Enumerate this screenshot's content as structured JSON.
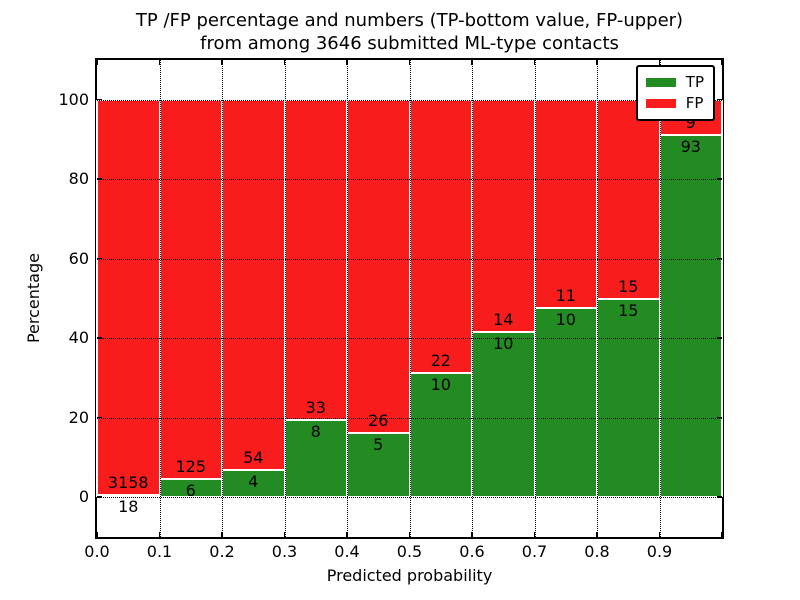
{
  "figure": {
    "title_line1": "TP /FP percentage and numbers (TP-bottom value, FP-upper)",
    "title_line2": "from among 3646 submitted ML-type contacts",
    "xlabel": "Predicted probability",
    "ylabel": "Percentage"
  },
  "legend": {
    "items": [
      {
        "label": "TP",
        "color": "#228b22"
      },
      {
        "label": "FP",
        "color": "#f81c1c"
      }
    ]
  },
  "colors": {
    "tp": "#228b22",
    "fp": "#f81c1c",
    "grid": "#000000",
    "background": "#ffffff"
  },
  "chart_data": {
    "type": "bar",
    "stacked": true,
    "normalized": "each 0.1-wide bin scaled to 100%",
    "title": "TP /FP percentage and numbers (TP-bottom value, FP-upper) from among 3646 submitted ML-type contacts",
    "xlabel": "Predicted probability",
    "ylabel": "Percentage",
    "x_tick_labels": [
      "0.0",
      "0.1",
      "0.2",
      "0.3",
      "0.4",
      "0.5",
      "0.6",
      "0.7",
      "0.8",
      "0.9"
    ],
    "y_ticks": [
      0,
      20,
      40,
      60,
      80,
      100
    ],
    "xlim": [
      0.0,
      1.0
    ],
    "ylim": [
      -10,
      110
    ],
    "grid": true,
    "legend_position": "upper right",
    "bin_width": 0.1,
    "total_contacts": 3646,
    "categories": [
      "0.0-0.1",
      "0.1-0.2",
      "0.2-0.3",
      "0.3-0.4",
      "0.4-0.5",
      "0.5-0.6",
      "0.6-0.7",
      "0.7-0.8",
      "0.8-0.9",
      "0.9-1.0"
    ],
    "series": [
      {
        "name": "TP",
        "color": "#228b22",
        "counts": [
          18,
          6,
          4,
          8,
          5,
          10,
          10,
          10,
          15,
          93
        ]
      },
      {
        "name": "FP",
        "color": "#f81c1c",
        "counts": [
          3158,
          125,
          54,
          33,
          26,
          22,
          14,
          11,
          15,
          9
        ]
      }
    ]
  }
}
